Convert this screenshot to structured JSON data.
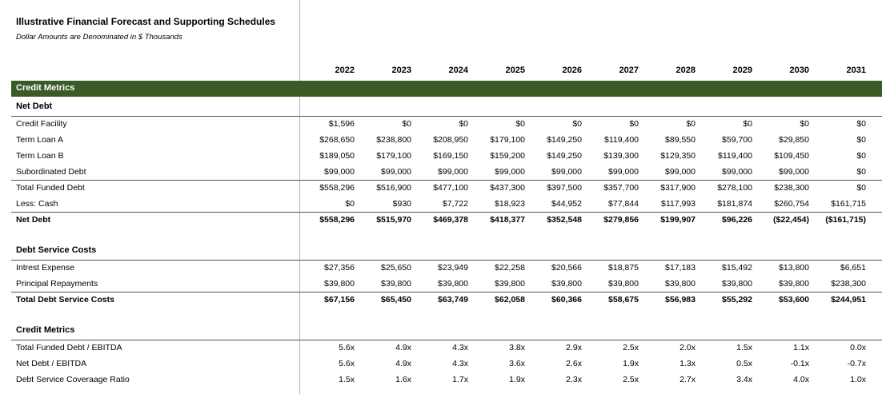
{
  "title": "Illustrative Financial Forecast and Supporting Schedules",
  "subtitle": "Dollar Amounts are Denominated in $ Thousands",
  "years": [
    "2022",
    "2023",
    "2024",
    "2025",
    "2026",
    "2027",
    "2028",
    "2029",
    "2030",
    "2031"
  ],
  "band_label": "Credit Metrics",
  "sections": [
    {
      "heading": "Net Debt",
      "rows": [
        {
          "label": "Credit Facility",
          "values": [
            "$1,596",
            "$0",
            "$0",
            "$0",
            "$0",
            "$0",
            "$0",
            "$0",
            "$0",
            "$0"
          ],
          "bold": false
        },
        {
          "label": "Term Loan A",
          "values": [
            "$268,650",
            "$238,800",
            "$208,950",
            "$179,100",
            "$149,250",
            "$119,400",
            "$89,550",
            "$59,700",
            "$29,850",
            "$0"
          ],
          "bold": false
        },
        {
          "label": "Term Loan B",
          "values": [
            "$189,050",
            "$179,100",
            "$169,150",
            "$159,200",
            "$149,250",
            "$139,300",
            "$129,350",
            "$119,400",
            "$109,450",
            "$0"
          ],
          "bold": false
        },
        {
          "label": "Subordinated Debt",
          "values": [
            "$99,000",
            "$99,000",
            "$99,000",
            "$99,000",
            "$99,000",
            "$99,000",
            "$99,000",
            "$99,000",
            "$99,000",
            "$0"
          ],
          "bold": false
        },
        {
          "label": "Total Funded Debt",
          "values": [
            "$558,296",
            "$516,900",
            "$477,100",
            "$437,300",
            "$397,500",
            "$357,700",
            "$317,900",
            "$278,100",
            "$238,300",
            "$0"
          ],
          "bold": false
        },
        {
          "label": "Less: Cash",
          "values": [
            "$0",
            "$930",
            "$7,722",
            "$18,923",
            "$44,952",
            "$77,844",
            "$117,993",
            "$181,874",
            "$260,754",
            "$161,715"
          ],
          "bold": false
        },
        {
          "label": "Net Debt",
          "values": [
            "$558,296",
            "$515,970",
            "$469,378",
            "$418,377",
            "$352,548",
            "$279,856",
            "$199,907",
            "$96,226",
            "($22,454)",
            "($161,715)"
          ],
          "bold": true
        }
      ]
    },
    {
      "heading": "Debt Service Costs",
      "rows": [
        {
          "label": "Intrest Expense",
          "values": [
            "$27,356",
            "$25,650",
            "$23,949",
            "$22,258",
            "$20,566",
            "$18,875",
            "$17,183",
            "$15,492",
            "$13,800",
            "$6,651"
          ],
          "bold": false
        },
        {
          "label": "Principal Repayments",
          "values": [
            "$39,800",
            "$39,800",
            "$39,800",
            "$39,800",
            "$39,800",
            "$39,800",
            "$39,800",
            "$39,800",
            "$39,800",
            "$238,300"
          ],
          "bold": false
        },
        {
          "label": "Total Debt Service Costs",
          "values": [
            "$67,156",
            "$65,450",
            "$63,749",
            "$62,058",
            "$60,366",
            "$58,675",
            "$56,983",
            "$55,292",
            "$53,600",
            "$244,951"
          ],
          "bold": true
        }
      ]
    },
    {
      "heading": "Credit Metrics",
      "rows": [
        {
          "label": "Total Funded Debt / EBITDA",
          "values": [
            "5.6x",
            "4.9x",
            "4.3x",
            "3.8x",
            "2.9x",
            "2.5x",
            "2.0x",
            "1.5x",
            "1.1x",
            "0.0x"
          ],
          "bold": false
        },
        {
          "label": "Net Debt / EBITDA",
          "values": [
            "5.6x",
            "4.9x",
            "4.3x",
            "3.6x",
            "2.6x",
            "1.9x",
            "1.3x",
            "0.5x",
            "-0.1x",
            "-0.7x"
          ],
          "bold": false
        },
        {
          "label": "Debt Service Coveraage Ratio",
          "values": [
            "1.5x",
            "1.6x",
            "1.7x",
            "1.9x",
            "2.3x",
            "2.5x",
            "2.7x",
            "3.4x",
            "4.0x",
            "1.0x"
          ],
          "bold": false
        }
      ]
    }
  ]
}
